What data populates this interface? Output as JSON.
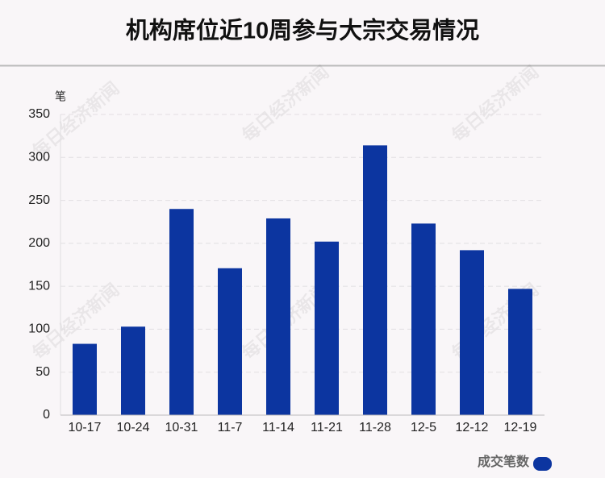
{
  "chart_data": {
    "type": "bar",
    "title": "机构席位近10周参与大宗交易情况",
    "y_unit": "笔",
    "watermark": "每日经济新闻",
    "categories": [
      "10-17",
      "10-24",
      "10-31",
      "11-7",
      "11-14",
      "11-21",
      "11-28",
      "12-5",
      "12-12",
      "12-19"
    ],
    "series": [
      {
        "name": "成交笔数",
        "color": "#0c35a0",
        "values": [
          83,
          103,
          240,
          171,
          229,
          202,
          314,
          223,
          192,
          147
        ]
      }
    ],
    "ylim": [
      0,
      350
    ],
    "yticks": [
      0,
      50,
      100,
      150,
      200,
      250,
      300,
      350
    ],
    "grid": true,
    "legend": "bottom-right"
  }
}
